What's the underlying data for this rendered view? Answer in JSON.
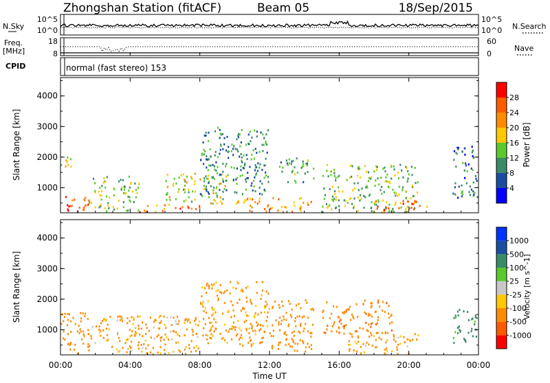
{
  "header": {
    "station": "Zhongshan Station (fitACF)",
    "beam": "Beam 05",
    "date": "18/Sep/2015"
  },
  "top_panels": {
    "nsky_label": "N.Sky",
    "nsky_ticks": [
      "10^5",
      "10^0"
    ],
    "nsearch_label": "N.Search",
    "nsearch_ticks": [
      "10^5",
      "10^0"
    ],
    "freq_label": "Freq.",
    "freq_unit": "[MHz]",
    "freq_ticks": [
      "18",
      "8"
    ],
    "nave_label": "Nave",
    "nave_ticks": [
      "60",
      "0"
    ],
    "cpid_label": "CPID",
    "cpid_text": "normal (fast stereo) 153"
  },
  "colors": {
    "power": [
      "#0000ff",
      "#1c4ea0",
      "#3a8c68",
      "#5ac92c",
      "#ffc800",
      "#ff8c00",
      "#ff5a00",
      "#ff0000"
    ],
    "velocity": [
      "#ff0000",
      "#ff5a00",
      "#ff8c00",
      "#ffc800",
      "#c8c8c8",
      "#5ac92c",
      "#3a8c68",
      "#1c4ea0",
      "#0032ff"
    ]
  },
  "chart_data": [
    {
      "type": "heatmap",
      "name": "power",
      "ylabel": "Slant Range [km]",
      "yticks": [
        "1000",
        "2000",
        "3000",
        "4000"
      ],
      "ylim": [
        180,
        4600
      ],
      "xticks": [
        "00:00",
        "04:00",
        "08:00",
        "12:00",
        "16:00",
        "20:00",
        "00:00"
      ],
      "xlim_hours": [
        0,
        24
      ],
      "colorbar": {
        "label": "Power [dB]",
        "ticks": [
          "4",
          "8",
          "12",
          "16",
          "20",
          "24",
          "28"
        ],
        "range": [
          0,
          30
        ]
      },
      "echo_regions": [
        {
          "t0": 0.0,
          "t1": 1.6,
          "r0": 200,
          "r1": 800,
          "level": 26
        },
        {
          "t0": 0.0,
          "t1": 0.6,
          "r0": 1600,
          "r1": 2200,
          "level": 18
        },
        {
          "t0": 1.6,
          "t1": 4.5,
          "r0": 250,
          "r1": 1400,
          "level": 14
        },
        {
          "t0": 4.5,
          "t1": 8.0,
          "r0": 200,
          "r1": 500,
          "level": 24
        },
        {
          "t0": 6.0,
          "t1": 9.5,
          "r0": 500,
          "r1": 1500,
          "level": 16
        },
        {
          "t0": 8.0,
          "t1": 12.0,
          "r0": 800,
          "r1": 3000,
          "level": 10
        },
        {
          "t0": 10.0,
          "t1": 14.5,
          "r0": 200,
          "r1": 700,
          "level": 22
        },
        {
          "t0": 12.5,
          "t1": 14.5,
          "r0": 1200,
          "r1": 2000,
          "level": 12
        },
        {
          "t0": 15.0,
          "t1": 20.5,
          "r0": 200,
          "r1": 1800,
          "level": 14
        },
        {
          "t0": 18.0,
          "t1": 21.0,
          "r0": 200,
          "r1": 600,
          "level": 24
        },
        {
          "t0": 22.5,
          "t1": 24.0,
          "r0": 700,
          "r1": 2400,
          "level": 8
        }
      ]
    },
    {
      "type": "heatmap",
      "name": "velocity",
      "ylabel": "Slant Range [km]",
      "yticks": [
        "1000",
        "2000",
        "3000",
        "4000"
      ],
      "ylim": [
        180,
        4600
      ],
      "xticks": [
        "00:00",
        "04:00",
        "08:00",
        "12:00",
        "16:00",
        "20:00",
        "00:00"
      ],
      "xlim_hours": [
        0,
        24
      ],
      "xlabel": "Time UT",
      "colorbar": {
        "label": "Velocity [m s^-1]",
        "ticks": [
          "-1000",
          "-500",
          "-100",
          "-25",
          "25",
          "100",
          "500",
          "1000"
        ]
      },
      "echo_regions": [
        {
          "t0": 0.0,
          "t1": 1.6,
          "r0": 200,
          "r1": 1600,
          "level": -300
        },
        {
          "t0": 1.6,
          "t1": 8.0,
          "r0": 200,
          "r1": 1500,
          "level": -150
        },
        {
          "t0": 8.0,
          "t1": 12.0,
          "r0": 500,
          "r1": 2600,
          "level": -200
        },
        {
          "t0": 12.0,
          "t1": 14.5,
          "r0": 300,
          "r1": 2000,
          "level": -250
        },
        {
          "t0": 15.0,
          "t1": 19.0,
          "r0": 900,
          "r1": 2000,
          "level": -400
        },
        {
          "t0": 16.5,
          "t1": 20.5,
          "r0": 200,
          "r1": 900,
          "level": -150
        },
        {
          "t0": 22.5,
          "t1": 24.0,
          "r0": 600,
          "r1": 1700,
          "level": 200
        }
      ]
    }
  ]
}
